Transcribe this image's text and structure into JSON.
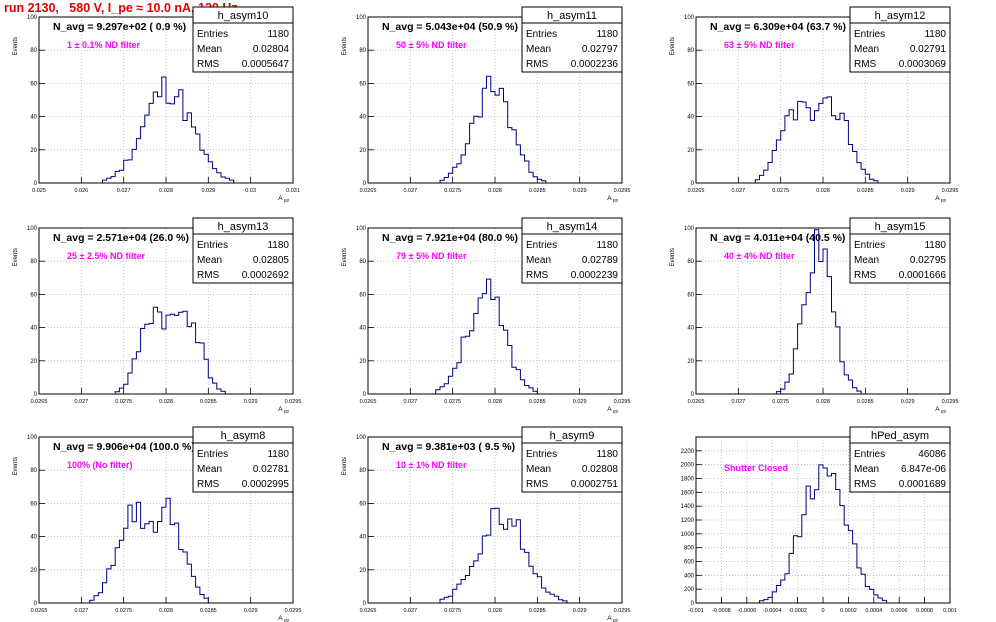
{
  "page_title": "run 2130,   580 V, I_pe ≈ 10.0 nA, 120 Hz",
  "colors": {
    "histogram": "#000080",
    "annotation": "#ff00ff",
    "title": "#e00000",
    "grid": "#b8b8b8"
  },
  "chart_data": [
    {
      "type": "histogram",
      "name": "h_asym10",
      "header": "N_avg = 9.297e+02 ( 0.9 %)",
      "annotation": "1 ± 0.1% ND filter",
      "stats": [
        [
          "Entries",
          "1180"
        ],
        [
          "Mean",
          "0.02804"
        ],
        [
          "RMS",
          "0.0005647"
        ]
      ],
      "xlabel": "A μp",
      "ylabel": "Events",
      "xlim": [
        0.025,
        0.031
      ],
      "ylim": [
        0,
        100
      ],
      "xticks": [
        "0.025",
        "0.026",
        "0.027",
        "0.028",
        "0.029",
        "0.03",
        "0.031"
      ],
      "yticks": [
        "0",
        "20",
        "40",
        "60",
        "80",
        "100"
      ],
      "mean": 0.02804,
      "rms": 0.0005647,
      "peak": 62,
      "seed": 11
    },
    {
      "type": "histogram",
      "name": "h_asym11",
      "header": "N_avg = 5.043e+04 (50.9 %)",
      "annotation": "50 ± 5% ND filter",
      "stats": [
        [
          "Entries",
          "1180"
        ],
        [
          "Mean",
          "0.02797"
        ],
        [
          "RMS",
          "0.0002236"
        ]
      ],
      "xlabel": "A μp",
      "ylabel": "Events",
      "xlim": [
        0.0265,
        0.0295
      ],
      "ylim": [
        0,
        100
      ],
      "xticks": [
        "0.0265",
        "0.027",
        "0.0275",
        "0.028",
        "0.0285",
        "0.029",
        "0.0295"
      ],
      "yticks": [
        "0",
        "20",
        "40",
        "60",
        "80",
        "100"
      ],
      "mean": 0.02797,
      "rms": 0.0002236,
      "peak": 63,
      "seed": 23
    },
    {
      "type": "histogram",
      "name": "h_asym12",
      "header": "N_avg = 6.309e+04 (63.7 %)",
      "annotation": "63 ± 5% ND filter",
      "stats": [
        [
          "Entries",
          "1180"
        ],
        [
          "Mean",
          "0.02791"
        ],
        [
          "RMS",
          "0.0003069"
        ]
      ],
      "xlabel": "A μp",
      "ylabel": "Events",
      "xlim": [
        0.0265,
        0.0295
      ],
      "ylim": [
        0,
        100
      ],
      "xticks": [
        "0.0265",
        "0.027",
        "0.0275",
        "0.028",
        "0.0285",
        "0.029",
        "0.0295"
      ],
      "yticks": [
        "0",
        "20",
        "40",
        "60",
        "80",
        "100"
      ],
      "mean": 0.02791,
      "rms": 0.0003069,
      "peak": 48,
      "seed": 37,
      "bimodal": true
    },
    {
      "type": "histogram",
      "name": "h_asym13",
      "header": "N_avg = 2.571e+04 (26.0 %)",
      "annotation": "25 ± 2.5% ND filter",
      "stats": [
        [
          "Entries",
          "1180"
        ],
        [
          "Mean",
          "0.02805"
        ],
        [
          "RMS",
          "0.0002692"
        ]
      ],
      "xlabel": "A μp",
      "ylabel": "Events",
      "xlim": [
        0.0265,
        0.0295
      ],
      "ylim": [
        0,
        100
      ],
      "xticks": [
        "0.0265",
        "0.027",
        "0.0275",
        "0.028",
        "0.0285",
        "0.029",
        "0.0295"
      ],
      "yticks": [
        "0",
        "20",
        "40",
        "60",
        "80",
        "100"
      ],
      "mean": 0.02805,
      "rms": 0.0002692,
      "peak": 52,
      "seed": 41,
      "bimodal": true
    },
    {
      "type": "histogram",
      "name": "h_asym14",
      "header": "N_avg = 7.921e+04 (80.0 %)",
      "annotation": "79 ± 5% ND filter",
      "stats": [
        [
          "Entries",
          "1180"
        ],
        [
          "Mean",
          "0.02789"
        ],
        [
          "RMS",
          "0.0002239"
        ]
      ],
      "xlabel": "A μp",
      "ylabel": "Events",
      "xlim": [
        0.0265,
        0.0295
      ],
      "ylim": [
        0,
        100
      ],
      "xticks": [
        "0.0265",
        "0.027",
        "0.0275",
        "0.028",
        "0.0285",
        "0.029",
        "0.0295"
      ],
      "yticks": [
        "0",
        "20",
        "40",
        "60",
        "80",
        "100"
      ],
      "mean": 0.02789,
      "rms": 0.0002239,
      "peak": 64,
      "seed": 53
    },
    {
      "type": "histogram",
      "name": "h_asym15",
      "header": "N_avg = 4.011e+04 (40.5 %)",
      "annotation": "40 ± 4% ND filter",
      "stats": [
        [
          "Entries",
          "1180"
        ],
        [
          "Mean",
          "0.02795"
        ],
        [
          "RMS",
          "0.0001666"
        ]
      ],
      "xlabel": "A μp",
      "ylabel": "Events",
      "xlim": [
        0.0265,
        0.0295
      ],
      "ylim": [
        0,
        100
      ],
      "xticks": [
        "0.0265",
        "0.027",
        "0.0275",
        "0.028",
        "0.0285",
        "0.029",
        "0.0295"
      ],
      "yticks": [
        "0",
        "20",
        "40",
        "60",
        "80",
        "100"
      ],
      "mean": 0.02795,
      "rms": 0.0001666,
      "peak": 99,
      "seed": 67
    },
    {
      "type": "histogram",
      "name": "h_asym8",
      "header": "N_avg = 9.906e+04 (100.0 %)",
      "annotation": "100% (No filter)",
      "stats": [
        [
          "Entries",
          "1180"
        ],
        [
          "Mean",
          "0.02781"
        ],
        [
          "RMS",
          "0.0002995"
        ]
      ],
      "xlabel": "A μp",
      "ylabel": "Events",
      "xlim": [
        0.0265,
        0.0295
      ],
      "ylim": [
        0,
        100
      ],
      "xticks": [
        "0.0265",
        "0.027",
        "0.0275",
        "0.028",
        "0.0285",
        "0.029",
        "0.0295"
      ],
      "yticks": [
        "0",
        "20",
        "40",
        "60",
        "80",
        "100"
      ],
      "mean": 0.02781,
      "rms": 0.0002995,
      "peak": 57,
      "seed": 79,
      "bimodal": true
    },
    {
      "type": "histogram",
      "name": "h_asym9",
      "header": "N_avg = 9.381e+03 ( 9.5 %)",
      "annotation": "10 ± 1% ND filter",
      "stats": [
        [
          "Entries",
          "1180"
        ],
        [
          "Mean",
          "0.02808"
        ],
        [
          "RMS",
          "0.0002751"
        ]
      ],
      "xlabel": "A μp",
      "ylabel": "Events",
      "xlim": [
        0.0265,
        0.0295
      ],
      "ylim": [
        0,
        100
      ],
      "xticks": [
        "0.0265",
        "0.027",
        "0.0275",
        "0.028",
        "0.0285",
        "0.029",
        "0.0295"
      ],
      "yticks": [
        "0",
        "20",
        "40",
        "60",
        "80",
        "100"
      ],
      "mean": 0.02808,
      "rms": 0.0002751,
      "peak": 59,
      "seed": 83
    },
    {
      "type": "histogram",
      "name": "hPed_asym",
      "header": "",
      "annotation": "Shutter Closed",
      "stats": [
        [
          "Entries",
          "46086"
        ],
        [
          "Mean",
          "6.847e-06"
        ],
        [
          "RMS",
          "0.0001689"
        ]
      ],
      "xlabel": "",
      "ylabel": "",
      "xlim": [
        -0.001,
        0.001
      ],
      "ylim": [
        0,
        2400
      ],
      "xticks": [
        "-0.001",
        "-0.0008",
        "-0.0006",
        "-0.0004",
        "-0.0002",
        "0",
        "0.0002",
        "0.0004",
        "0.0006",
        "0.0008",
        "0.001"
      ],
      "yticks": [
        "0",
        "200",
        "400",
        "600",
        "800",
        "1000",
        "1200",
        "1400",
        "1600",
        "1800",
        "2000",
        "2200"
      ],
      "mean": 6.847e-06,
      "rms": 0.0001689,
      "peak": 2250,
      "seed": 97
    }
  ]
}
